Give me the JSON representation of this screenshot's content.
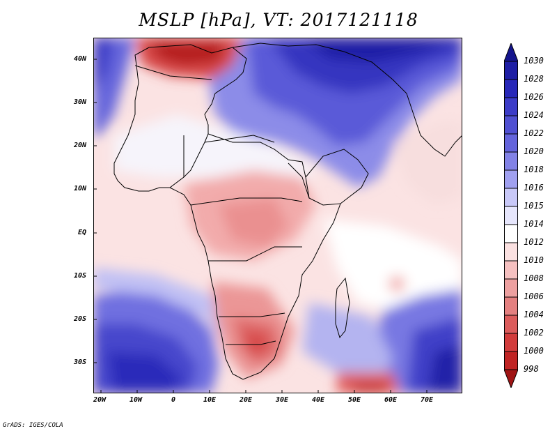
{
  "title": "MSLP [hPa], VT: 2017121118",
  "credit": "GrADS: IGES/COLA",
  "y_axis_labels": [
    "40N",
    "30N",
    "20N",
    "10N",
    "EQ",
    "10S",
    "20S",
    "30S"
  ],
  "x_axis_labels": [
    "20W",
    "10W",
    "0",
    "10E",
    "20E",
    "30E",
    "40E",
    "50E",
    "60E",
    "70E"
  ],
  "colorbar": {
    "levels": [
      "1030",
      "1028",
      "1026",
      "1024",
      "1022",
      "1020",
      "1018",
      "1016",
      "1015",
      "1014",
      "1012",
      "1010",
      "1008",
      "1006",
      "1004",
      "1002",
      "1000",
      "998"
    ],
    "colors": [
      "#14148c",
      "#1e1ea5",
      "#2828b9",
      "#3c3cc8",
      "#5050d2",
      "#6464dc",
      "#8282e6",
      "#a0a0f0",
      "#c8c8f8",
      "#e6e6fc",
      "#ffffff",
      "#fbe1e1",
      "#f5c0c0",
      "#eda0a0",
      "#e48080",
      "#dc5c5c",
      "#d23c3c",
      "#c02424",
      "#a01414"
    ]
  },
  "map_data": {
    "variable": "Mean sea level pressure",
    "units": "hPa",
    "valid_time": "2017121118",
    "lon_range": [
      -22,
      80
    ],
    "lat_range": [
      -37,
      45
    ]
  }
}
